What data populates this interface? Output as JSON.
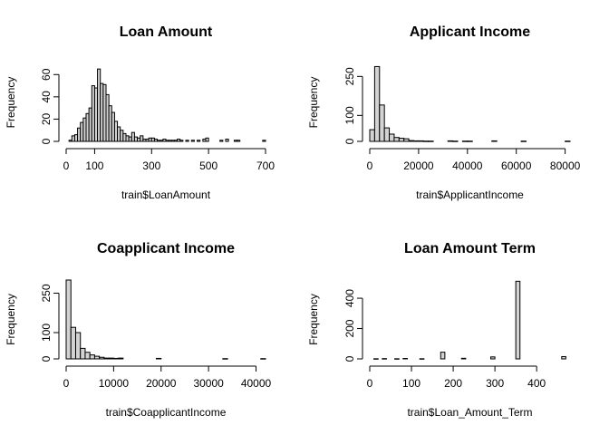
{
  "chart_data": [
    {
      "type": "bar",
      "title": "Loan Amount",
      "xlabel": "train$LoanAmount",
      "ylabel": "Frequency",
      "xlim": [
        0,
        700
      ],
      "ylim": [
        0,
        70
      ],
      "xticks": [
        0,
        100,
        300,
        500,
        700
      ],
      "xtick_labels": [
        "0",
        "100",
        "300",
        "500",
        "700"
      ],
      "yticks": [
        0,
        20,
        40,
        60
      ],
      "ytick_labels": [
        "0",
        "20",
        "40",
        "60"
      ],
      "bin_width": 10,
      "bins_start": [
        0,
        10,
        20,
        30,
        40,
        50,
        60,
        70,
        80,
        90,
        100,
        110,
        120,
        130,
        140,
        150,
        160,
        170,
        180,
        190,
        200,
        210,
        220,
        230,
        240,
        250,
        260,
        270,
        280,
        290,
        300,
        310,
        320,
        330,
        340,
        350,
        360,
        370,
        380,
        390,
        400,
        410,
        420,
        430,
        440,
        450,
        460,
        470,
        480,
        490,
        500,
        510,
        520,
        530,
        540,
        550,
        560,
        570,
        580,
        590,
        600,
        610,
        620,
        630,
        640,
        650,
        660,
        670,
        680,
        690
      ],
      "values": [
        0,
        1,
        5,
        6,
        12,
        17,
        21,
        25,
        30,
        50,
        48,
        65,
        52,
        51,
        42,
        32,
        26,
        18,
        13,
        10,
        7,
        5,
        4,
        8,
        4,
        3,
        5,
        2,
        2,
        3,
        3,
        2,
        1,
        1,
        2,
        1,
        1,
        1,
        1,
        2,
        1,
        0,
        1,
        0,
        1,
        0,
        1,
        0,
        2,
        3,
        0,
        0,
        0,
        0,
        1,
        0,
        2,
        0,
        0,
        1,
        1,
        0,
        0,
        0,
        0,
        0,
        0,
        0,
        0,
        1
      ]
    },
    {
      "type": "bar",
      "title": "Applicant Income",
      "xlabel": "train$ApplicantIncome",
      "ylabel": "Frequency",
      "xlim": [
        0,
        82000
      ],
      "ylim": [
        0,
        300
      ],
      "xticks": [
        0,
        20000,
        40000,
        60000,
        80000
      ],
      "xtick_labels": [
        "0",
        "20000",
        "40000",
        "60000",
        "80000"
      ],
      "yticks": [
        0,
        100,
        250
      ],
      "ytick_labels": [
        "0",
        "100",
        "250"
      ],
      "bin_width": 2000,
      "bins_start": [
        0,
        2000,
        4000,
        6000,
        8000,
        10000,
        12000,
        14000,
        16000,
        18000,
        20000,
        22000,
        24000,
        26000,
        28000,
        30000,
        32000,
        34000,
        36000,
        38000,
        40000,
        42000,
        44000,
        46000,
        48000,
        50000,
        52000,
        54000,
        56000,
        58000,
        60000,
        62000,
        64000,
        66000,
        68000,
        70000,
        72000,
        74000,
        76000,
        78000,
        80000
      ],
      "values": [
        45,
        288,
        140,
        52,
        28,
        15,
        12,
        10,
        3,
        2,
        2,
        1,
        1,
        0,
        0,
        0,
        2,
        1,
        0,
        1,
        1,
        0,
        0,
        0,
        0,
        2,
        0,
        0,
        0,
        0,
        0,
        1,
        0,
        0,
        0,
        0,
        0,
        0,
        0,
        0,
        1
      ]
    },
    {
      "type": "bar",
      "title": "Coapplicant Income",
      "xlabel": "train$CoapplicantIncome",
      "ylabel": "Frequency",
      "xlim": [
        0,
        42000
      ],
      "ylim": [
        0,
        300
      ],
      "xticks": [
        0,
        10000,
        20000,
        30000,
        40000
      ],
      "xtick_labels": [
        "0",
        "10000",
        "20000",
        "30000",
        "40000"
      ],
      "yticks": [
        0,
        100,
        250
      ],
      "ytick_labels": [
        "0",
        "100",
        "250"
      ],
      "bin_width": 1000,
      "bins_start": [
        0,
        1000,
        2000,
        3000,
        4000,
        5000,
        6000,
        7000,
        8000,
        9000,
        10000,
        11000,
        12000,
        13000,
        14000,
        15000,
        16000,
        17000,
        18000,
        19000,
        20000,
        21000,
        22000,
        23000,
        24000,
        25000,
        26000,
        27000,
        28000,
        29000,
        30000,
        31000,
        32000,
        33000,
        34000,
        35000,
        36000,
        37000,
        38000,
        39000,
        40000,
        41000
      ],
      "values": [
        300,
        120,
        100,
        40,
        25,
        15,
        10,
        6,
        3,
        3,
        2,
        3,
        0,
        0,
        0,
        0,
        0,
        0,
        0,
        2,
        0,
        0,
        0,
        0,
        0,
        0,
        0,
        0,
        0,
        0,
        0,
        0,
        0,
        1,
        0,
        0,
        0,
        0,
        0,
        0,
        0,
        1
      ]
    },
    {
      "type": "bar",
      "title": "Loan Amount Term",
      "xlabel": "train$Loan_Amount_Term",
      "ylabel": "Frequency",
      "xlim": [
        0,
        480
      ],
      "ylim": [
        0,
        520
      ],
      "xticks": [
        0,
        100,
        200,
        300,
        400
      ],
      "xtick_labels": [
        "0",
        "100",
        "200",
        "300",
        "400"
      ],
      "yticks": [
        0,
        200,
        400
      ],
      "ytick_labels": [
        "0",
        "200",
        "400"
      ],
      "bin_width": 10,
      "bins_start": [
        10,
        20,
        30,
        40,
        50,
        60,
        70,
        80,
        90,
        100,
        110,
        120,
        130,
        140,
        150,
        160,
        170,
        180,
        190,
        200,
        210,
        220,
        230,
        240,
        250,
        260,
        270,
        280,
        290,
        300,
        310,
        320,
        330,
        340,
        350,
        360,
        370,
        380,
        390,
        400,
        410,
        420,
        430,
        440,
        450,
        460,
        470
      ],
      "values": [
        1,
        0,
        2,
        0,
        0,
        1,
        0,
        3,
        0,
        0,
        0,
        1,
        0,
        0,
        0,
        0,
        44,
        0,
        0,
        0,
        0,
        4,
        0,
        0,
        0,
        0,
        0,
        0,
        13,
        0,
        0,
        0,
        0,
        0,
        512,
        0,
        0,
        0,
        0,
        0,
        0,
        0,
        0,
        0,
        0,
        15,
        0
      ]
    }
  ]
}
